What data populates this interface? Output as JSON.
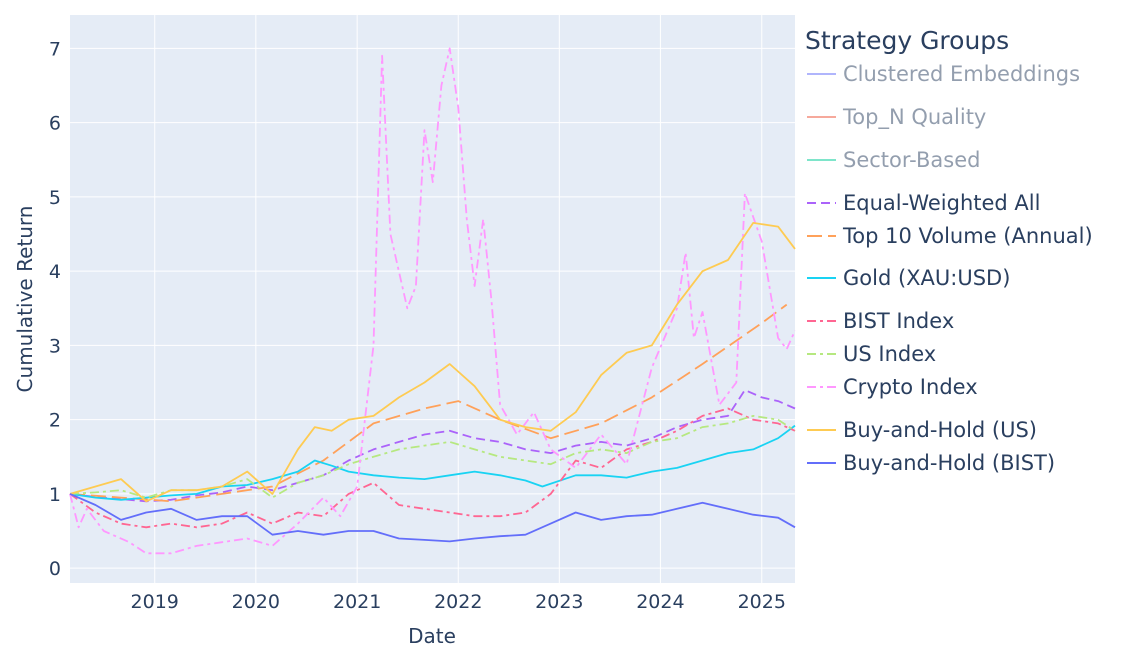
{
  "chart_data": {
    "type": "line",
    "xlabel": "Date",
    "ylabel": "Cumulative Return",
    "xlim": [
      "2018-03-01",
      "2025-05-01"
    ],
    "ylim": [
      -0.2,
      7.45
    ],
    "xticks": [
      {
        "date": "2019-01-01",
        "label": "2019"
      },
      {
        "date": "2020-01-01",
        "label": "2020"
      },
      {
        "date": "2021-01-01",
        "label": "2021"
      },
      {
        "date": "2022-01-01",
        "label": "2022"
      },
      {
        "date": "2023-01-01",
        "label": "2023"
      },
      {
        "date": "2024-01-01",
        "label": "2024"
      },
      {
        "date": "2025-01-01",
        "label": "2025"
      }
    ],
    "yticks": [
      {
        "value": 0,
        "label": "0"
      },
      {
        "value": 1,
        "label": "1"
      },
      {
        "value": 2,
        "label": "2"
      },
      {
        "value": 3,
        "label": "3"
      },
      {
        "value": 4,
        "label": "4"
      },
      {
        "value": 5,
        "label": "5"
      },
      {
        "value": 6,
        "label": "6"
      },
      {
        "value": 7,
        "label": "7"
      }
    ],
    "grid": true,
    "legend": {
      "title": "Strategy Groups",
      "placement": "right",
      "items": [
        {
          "label": "Clustered Embeddings",
          "color": "#636efa",
          "dash": "solid",
          "muted": true
        },
        {
          "label": "Top_N Quality",
          "color": "#ef553b",
          "dash": "solid",
          "muted": true
        },
        {
          "label": "Sector-Based",
          "color": "#00cc96",
          "dash": "solid",
          "muted": true
        },
        {
          "label": "Equal-Weighted All",
          "color": "#ab63fa",
          "dash": "dash",
          "muted": false
        },
        {
          "label": "Top 10 Volume (Annual)",
          "color": "#ffa15a",
          "dash": "longdash",
          "muted": false
        },
        {
          "label": "Gold (XAU:USD)",
          "color": "#19d3f3",
          "dash": "solid",
          "muted": false
        },
        {
          "label": "BIST Index",
          "color": "#ff6692",
          "dash": "dashdot",
          "muted": false
        },
        {
          "label": "US Index",
          "color": "#b6e880",
          "dash": "dashdot",
          "muted": false
        },
        {
          "label": "Crypto Index",
          "color": "#ff97ff",
          "dash": "dashdot",
          "muted": false
        },
        {
          "label": "Buy-and-Hold (US)",
          "color": "#fecb52",
          "dash": "solid",
          "muted": false
        },
        {
          "label": "Buy-and-Hold (BIST)",
          "color": "#636efa",
          "dash": "solid",
          "muted": false
        }
      ]
    },
    "series": [
      {
        "name": "Equal-Weighted All",
        "color": "#ab63fa",
        "dash": "dash",
        "x": [
          "2018-03-01",
          "2018-06-01",
          "2018-09-01",
          "2018-12-01",
          "2019-03-01",
          "2019-06-01",
          "2019-09-01",
          "2019-12-01",
          "2020-03-01",
          "2020-06-01",
          "2020-09-01",
          "2020-12-01",
          "2021-03-01",
          "2021-06-01",
          "2021-09-01",
          "2021-12-01",
          "2022-03-01",
          "2022-06-01",
          "2022-09-01",
          "2022-12-01",
          "2023-03-01",
          "2023-06-01",
          "2023-09-01",
          "2023-12-01",
          "2024-03-01",
          "2024-06-01",
          "2024-09-01",
          "2024-11-01",
          "2025-01-01",
          "2025-03-01",
          "2025-05-01"
        ],
        "y": [
          1.0,
          0.96,
          0.93,
          0.9,
          0.92,
          0.98,
          1.02,
          1.1,
          1.05,
          1.15,
          1.25,
          1.45,
          1.6,
          1.7,
          1.8,
          1.85,
          1.75,
          1.7,
          1.6,
          1.55,
          1.65,
          1.7,
          1.65,
          1.75,
          1.9,
          2.0,
          2.05,
          2.4,
          2.3,
          2.25,
          2.15
        ]
      },
      {
        "name": "Top 10 Volume (Annual)",
        "color": "#ffa15a",
        "dash": "longdash",
        "x": [
          "2018-03-01",
          "2018-09-01",
          "2019-03-01",
          "2019-09-01",
          "2020-03-01",
          "2020-09-01",
          "2021-03-01",
          "2021-09-01",
          "2022-01-01",
          "2022-06-01",
          "2022-12-01",
          "2023-06-01",
          "2023-12-01",
          "2024-06-01",
          "2025-01-01",
          "2025-04-01"
        ],
        "y": [
          1.0,
          0.95,
          0.9,
          1.0,
          1.1,
          1.45,
          1.95,
          2.15,
          2.25,
          2.0,
          1.75,
          1.95,
          2.3,
          2.75,
          3.3,
          3.55
        ]
      },
      {
        "name": "Gold (XAU:USD)",
        "color": "#19d3f3",
        "dash": "solid",
        "x": [
          "2018-03-01",
          "2018-06-01",
          "2018-09-01",
          "2018-12-01",
          "2019-03-01",
          "2019-06-01",
          "2019-09-01",
          "2019-12-01",
          "2020-03-01",
          "2020-06-01",
          "2020-08-01",
          "2020-10-01",
          "2020-12-01",
          "2021-03-01",
          "2021-06-01",
          "2021-09-01",
          "2021-12-01",
          "2022-03-01",
          "2022-06-01",
          "2022-09-01",
          "2022-11-01",
          "2023-03-01",
          "2023-06-01",
          "2023-09-01",
          "2023-12-01",
          "2024-03-01",
          "2024-06-01",
          "2024-09-01",
          "2024-12-01",
          "2025-03-01",
          "2025-05-01"
        ],
        "y": [
          1.0,
          0.95,
          0.92,
          0.95,
          0.98,
          1.0,
          1.1,
          1.12,
          1.2,
          1.3,
          1.45,
          1.38,
          1.3,
          1.25,
          1.22,
          1.2,
          1.25,
          1.3,
          1.25,
          1.18,
          1.1,
          1.25,
          1.25,
          1.22,
          1.3,
          1.35,
          1.45,
          1.55,
          1.6,
          1.75,
          1.92
        ]
      },
      {
        "name": "BIST Index",
        "color": "#ff6692",
        "dash": "dashdot",
        "x": [
          "2018-03-01",
          "2018-06-01",
          "2018-09-01",
          "2018-12-01",
          "2019-03-01",
          "2019-06-01",
          "2019-09-01",
          "2019-12-01",
          "2020-03-01",
          "2020-06-01",
          "2020-09-01",
          "2020-12-01",
          "2021-03-01",
          "2021-06-01",
          "2021-09-01",
          "2021-12-01",
          "2022-03-01",
          "2022-06-01",
          "2022-09-01",
          "2022-12-01",
          "2023-03-01",
          "2023-06-01",
          "2023-09-01",
          "2023-12-01",
          "2024-03-01",
          "2024-06-01",
          "2024-09-01",
          "2024-12-01",
          "2025-03-01",
          "2025-05-01"
        ],
        "y": [
          1.0,
          0.75,
          0.6,
          0.55,
          0.6,
          0.55,
          0.6,
          0.75,
          0.6,
          0.75,
          0.7,
          1.0,
          1.15,
          0.85,
          0.8,
          0.75,
          0.7,
          0.7,
          0.75,
          1.0,
          1.45,
          1.35,
          1.6,
          1.7,
          1.85,
          2.05,
          2.15,
          2.0,
          1.95,
          1.85
        ]
      },
      {
        "name": "US Index",
        "color": "#b6e880",
        "dash": "dashdot",
        "x": [
          "2018-03-01",
          "2018-06-01",
          "2018-09-01",
          "2018-12-01",
          "2019-03-01",
          "2019-06-01",
          "2019-09-01",
          "2019-12-01",
          "2020-03-01",
          "2020-06-01",
          "2020-09-01",
          "2020-12-01",
          "2021-03-01",
          "2021-06-01",
          "2021-09-01",
          "2021-12-01",
          "2022-03-01",
          "2022-06-01",
          "2022-09-01",
          "2022-12-01",
          "2023-03-01",
          "2023-06-01",
          "2023-09-01",
          "2023-12-01",
          "2024-03-01",
          "2024-06-01",
          "2024-09-01",
          "2024-12-01",
          "2025-03-01",
          "2025-05-01"
        ],
        "y": [
          1.0,
          1.02,
          1.05,
          0.95,
          1.05,
          1.05,
          1.1,
          1.2,
          0.95,
          1.15,
          1.25,
          1.4,
          1.5,
          1.6,
          1.65,
          1.7,
          1.6,
          1.5,
          1.45,
          1.4,
          1.55,
          1.6,
          1.55,
          1.7,
          1.75,
          1.9,
          1.95,
          2.05,
          2.0,
          1.85
        ]
      },
      {
        "name": "Crypto Index",
        "color": "#ff97ff",
        "dash": "dashdot",
        "x": [
          "2018-03-01",
          "2018-04-01",
          "2018-05-01",
          "2018-07-01",
          "2018-10-01",
          "2018-12-01",
          "2019-03-01",
          "2019-06-01",
          "2019-09-01",
          "2019-12-01",
          "2020-03-01",
          "2020-06-01",
          "2020-09-01",
          "2020-11-01",
          "2021-01-01",
          "2021-03-01",
          "2021-04-01",
          "2021-05-01",
          "2021-07-01",
          "2021-08-01",
          "2021-09-01",
          "2021-10-01",
          "2021-11-01",
          "2021-12-01",
          "2022-01-01",
          "2022-02-01",
          "2022-03-01",
          "2022-04-01",
          "2022-05-01",
          "2022-06-01",
          "2022-08-01",
          "2022-10-01",
          "2022-12-01",
          "2023-03-01",
          "2023-06-01",
          "2023-09-01",
          "2023-12-01",
          "2024-03-01",
          "2024-04-01",
          "2024-05-01",
          "2024-06-01",
          "2024-08-01",
          "2024-10-01",
          "2024-11-01",
          "2025-01-01",
          "2025-03-01",
          "2025-04-01",
          "2025-05-01"
        ],
        "y": [
          1.0,
          0.55,
          0.8,
          0.5,
          0.35,
          0.2,
          0.2,
          0.3,
          0.35,
          0.4,
          0.3,
          0.6,
          0.95,
          0.7,
          1.1,
          3.0,
          6.9,
          4.5,
          3.5,
          3.8,
          5.9,
          5.2,
          6.5,
          7.0,
          6.2,
          4.7,
          3.8,
          4.7,
          3.6,
          2.2,
          1.8,
          2.1,
          1.6,
          1.35,
          1.8,
          1.4,
          2.7,
          3.5,
          4.25,
          3.1,
          3.45,
          2.2,
          2.5,
          5.05,
          4.4,
          3.1,
          2.95,
          3.2
        ]
      },
      {
        "name": "Buy-and-Hold (US)",
        "color": "#fecb52",
        "dash": "solid",
        "x": [
          "2018-03-01",
          "2018-06-01",
          "2018-09-01",
          "2018-12-01",
          "2019-03-01",
          "2019-06-01",
          "2019-09-01",
          "2019-12-01",
          "2020-03-01",
          "2020-06-01",
          "2020-08-01",
          "2020-10-01",
          "2020-12-01",
          "2021-03-01",
          "2021-06-01",
          "2021-09-01",
          "2021-12-01",
          "2022-03-01",
          "2022-06-01",
          "2022-09-01",
          "2022-12-01",
          "2023-03-01",
          "2023-06-01",
          "2023-09-01",
          "2023-12-01",
          "2024-03-01",
          "2024-06-01",
          "2024-09-01",
          "2024-12-01",
          "2025-03-01",
          "2025-05-01"
        ],
        "y": [
          1.0,
          1.1,
          1.2,
          0.9,
          1.05,
          1.05,
          1.1,
          1.3,
          1.0,
          1.6,
          1.9,
          1.85,
          2.0,
          2.05,
          2.3,
          2.5,
          2.75,
          2.45,
          2.0,
          1.9,
          1.85,
          2.1,
          2.6,
          2.9,
          3.0,
          3.55,
          4.0,
          4.15,
          4.65,
          4.6,
          4.3
        ]
      },
      {
        "name": "Buy-and-Hold (BIST)",
        "color": "#636efa",
        "dash": "solid",
        "x": [
          "2018-03-01",
          "2018-06-01",
          "2018-09-01",
          "2018-12-01",
          "2019-03-01",
          "2019-06-01",
          "2019-09-01",
          "2019-12-01",
          "2020-03-01",
          "2020-06-01",
          "2020-09-01",
          "2020-12-01",
          "2021-03-01",
          "2021-06-01",
          "2021-09-01",
          "2021-12-01",
          "2022-03-01",
          "2022-06-01",
          "2022-09-01",
          "2022-12-01",
          "2023-03-01",
          "2023-06-01",
          "2023-09-01",
          "2023-12-01",
          "2024-03-01",
          "2024-06-01",
          "2024-09-01",
          "2024-12-01",
          "2025-03-01",
          "2025-05-01"
        ],
        "y": [
          1.0,
          0.85,
          0.65,
          0.75,
          0.8,
          0.65,
          0.7,
          0.7,
          0.45,
          0.5,
          0.45,
          0.5,
          0.5,
          0.4,
          0.38,
          0.36,
          0.4,
          0.43,
          0.45,
          0.6,
          0.75,
          0.65,
          0.7,
          0.72,
          0.8,
          0.88,
          0.8,
          0.72,
          0.68,
          0.55
        ]
      }
    ]
  }
}
